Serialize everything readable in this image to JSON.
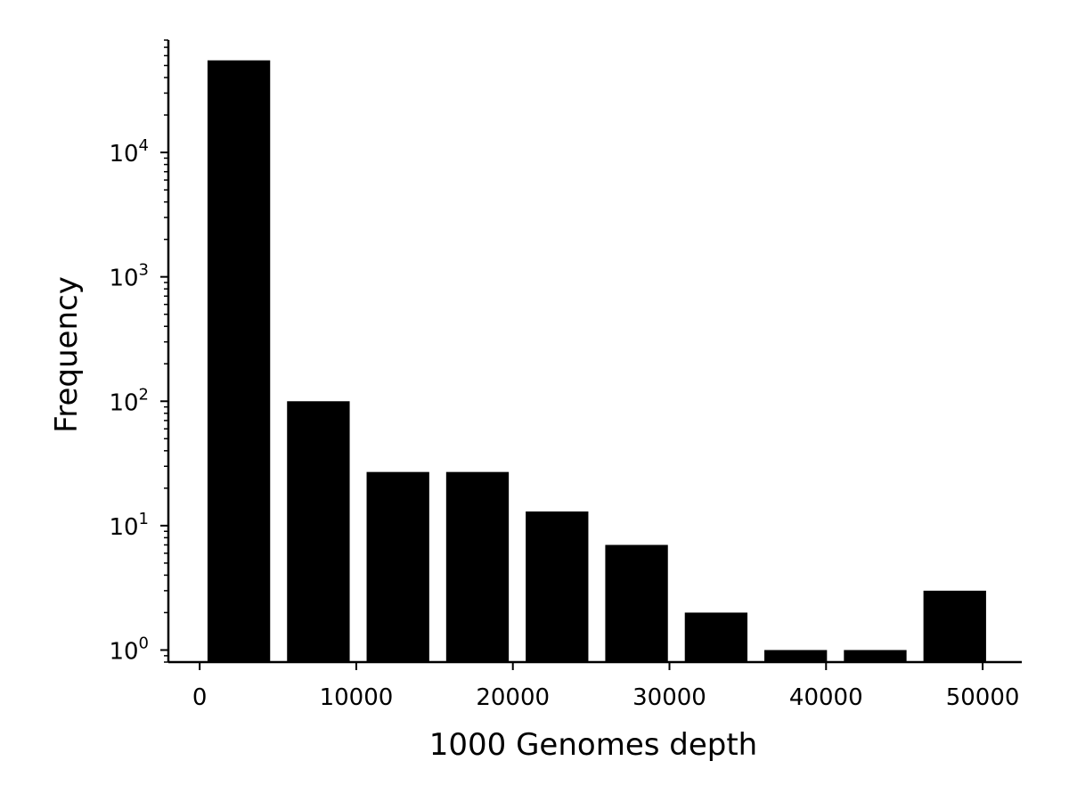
{
  "chart_data": {
    "type": "bar",
    "title": "",
    "xlabel": "1000 Genomes depth",
    "ylabel": "Frequency",
    "x_ticks": [
      0,
      10000,
      20000,
      30000,
      40000,
      50000
    ],
    "x_tick_labels": [
      "0",
      "10000",
      "20000",
      "30000",
      "40000",
      "50000"
    ],
    "y_scale": "log",
    "y_tick_values": [
      1,
      10,
      100,
      1000,
      10000
    ],
    "y_tick_labels": [
      {
        "base": "10",
        "exp": "0"
      },
      {
        "base": "10",
        "exp": "1"
      },
      {
        "base": "10",
        "exp": "2"
      },
      {
        "base": "10",
        "exp": "3"
      },
      {
        "base": "10",
        "exp": "4"
      }
    ],
    "xlim": [
      -2000,
      52500
    ],
    "ylim": [
      0.8,
      80000
    ],
    "bar_color": "#000000",
    "grid": false,
    "legend": "none",
    "bins": [
      {
        "start": 500,
        "end": 4500,
        "value": 55000
      },
      {
        "start": 5580,
        "end": 9580,
        "value": 100
      },
      {
        "start": 10660,
        "end": 14660,
        "value": 27
      },
      {
        "start": 15740,
        "end": 19740,
        "value": 27
      },
      {
        "start": 20820,
        "end": 24820,
        "value": 13
      },
      {
        "start": 25900,
        "end": 29900,
        "value": 7
      },
      {
        "start": 30980,
        "end": 34980,
        "value": 2
      },
      {
        "start": 36060,
        "end": 40060,
        "value": 1
      },
      {
        "start": 41140,
        "end": 45140,
        "value": 1
      },
      {
        "start": 46220,
        "end": 50220,
        "value": 3
      }
    ]
  }
}
